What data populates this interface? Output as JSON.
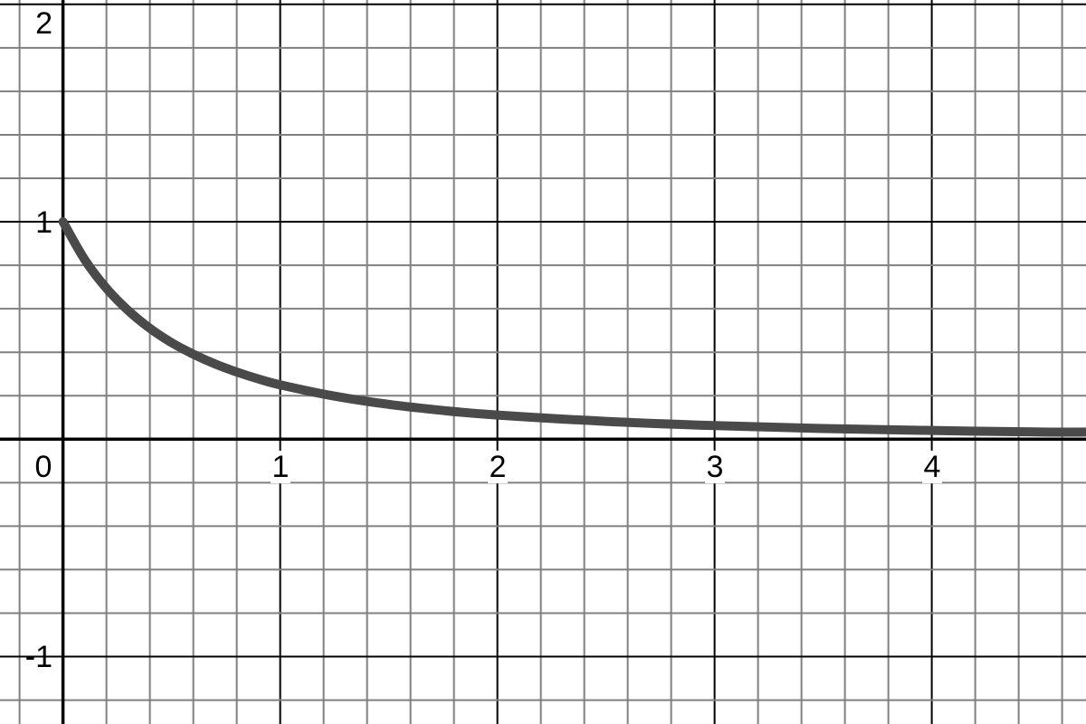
{
  "chart_data": {
    "type": "line",
    "title": "",
    "xlabel": "",
    "ylabel": "",
    "xlim": [
      -0.29,
      4.71
    ],
    "ylim": [
      -1.31,
      2.02
    ],
    "grid": true,
    "grid_minor_step": 0.2,
    "grid_major_step": 1,
    "x_tick_labels": [
      "0",
      "1",
      "2",
      "3",
      "4"
    ],
    "y_tick_labels": [
      "2",
      "1",
      "-1"
    ],
    "curve_color": "#4a4a4a",
    "series": [
      {
        "x": [
          0,
          0.1,
          0.2,
          0.3,
          0.4,
          0.5,
          0.6,
          0.7,
          0.8,
          0.9,
          1.0,
          1.25,
          1.5,
          1.75,
          2.0,
          2.5,
          3.0,
          3.5,
          4.0,
          4.5,
          4.71
        ],
        "y": [
          1,
          0.826,
          0.694,
          0.592,
          0.51,
          0.444,
          0.391,
          0.346,
          0.309,
          0.277,
          0.25,
          0.198,
          0.16,
          0.132,
          0.111,
          0.082,
          0.0625,
          0.049,
          0.04,
          0.033,
          0.0327
        ]
      }
    ]
  }
}
